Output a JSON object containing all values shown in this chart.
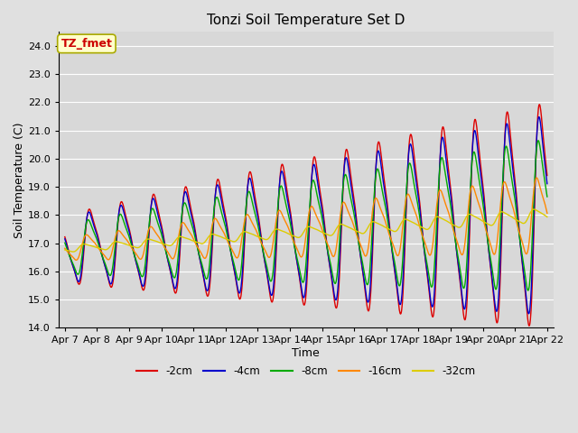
{
  "title": "Tonzi Soil Temperature Set D",
  "xlabel": "Time",
  "ylabel": "Soil Temperature (C)",
  "ylim": [
    14.0,
    24.5
  ],
  "ytick_vals": [
    14.0,
    15.0,
    16.0,
    17.0,
    18.0,
    19.0,
    20.0,
    21.0,
    22.0,
    23.0,
    24.0
  ],
  "fig_bg": "#e0e0e0",
  "plot_bg": "#d8d8d8",
  "annotation_text": "TZ_fmet",
  "annotation_fg": "#cc0000",
  "annotation_bg": "#ffffcc",
  "annotation_border": "#aaaa00",
  "colors": {
    "-2cm": "#dd0000",
    "-4cm": "#0000cc",
    "-8cm": "#00aa00",
    "-16cm": "#ff8800",
    "-32cm": "#ddcc00"
  },
  "legend_labels": [
    "-2cm",
    "-4cm",
    "-8cm",
    "-16cm",
    "-32cm"
  ],
  "xtick_labels": [
    "Apr 7",
    "Apr 8",
    "Apr 9",
    "Apr 10",
    "Apr 11",
    "Apr 12",
    "Apr 13",
    "Apr 14",
    "Apr 15",
    "Apr 16",
    "Apr 17",
    "Apr 18",
    "Apr 19",
    "Apr 20",
    "Apr 21",
    "Apr 22"
  ],
  "n_points": 1440,
  "n_days": 15
}
